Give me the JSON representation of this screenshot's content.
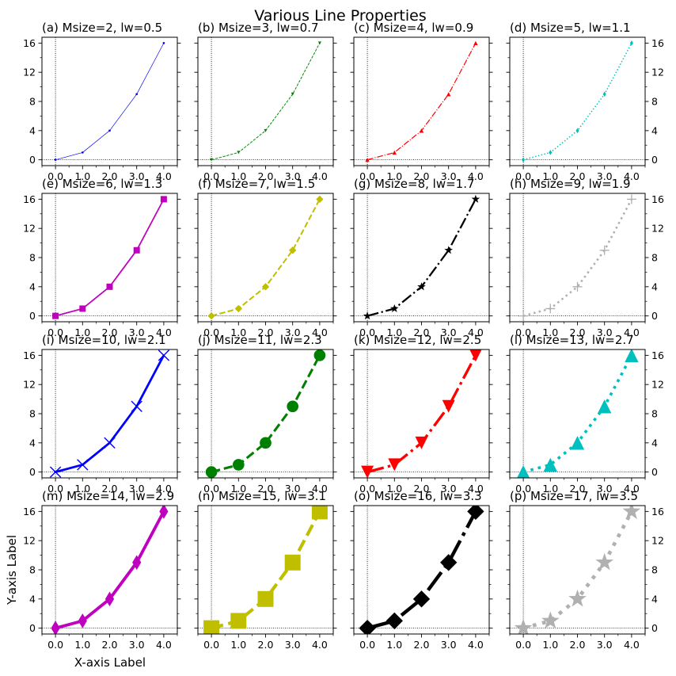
{
  "figure": {
    "title": "Various Line Properties",
    "xlabel": "X-axis Label",
    "ylabel": "Y-axis Label"
  },
  "chart_data": [
    {
      "type": "line",
      "title": "(a) Msize=2, lw=0.5",
      "x": [
        0,
        1,
        2,
        3,
        4
      ],
      "y": [
        0,
        1,
        4,
        9,
        16
      ],
      "color": "#0000ff",
      "linestyle": "solid",
      "marker": "circle",
      "marker_size": 2,
      "line_width": 0.5,
      "xticks": [
        "0.0",
        "1.0",
        "2.0",
        "3.0",
        "4.0"
      ],
      "yticks": [
        "0",
        "4",
        "8",
        "12",
        "16"
      ],
      "xlim": [
        -0.5,
        4.5
      ],
      "ylim": [
        -0.8,
        16.8
      ],
      "yaxis": "left"
    },
    {
      "type": "line",
      "title": "(b) Msize=3, lw=0.7",
      "x": [
        0,
        1,
        2,
        3,
        4
      ],
      "y": [
        0,
        1,
        4,
        9,
        16
      ],
      "color": "#008000",
      "linestyle": "dashed",
      "marker": "triangle-down",
      "marker_size": 3,
      "line_width": 0.7,
      "xticks": [
        "0.0",
        "1.0",
        "2.0",
        "3.0",
        "4.0"
      ],
      "yticks": [
        "0",
        "4",
        "8",
        "12",
        "16"
      ],
      "xlim": [
        -0.5,
        4.5
      ],
      "ylim": [
        -0.8,
        16.8
      ],
      "yaxis": "none"
    },
    {
      "type": "line",
      "title": "(c) Msize=4, lw=0.9",
      "x": [
        0,
        1,
        2,
        3,
        4
      ],
      "y": [
        0,
        1,
        4,
        9,
        16
      ],
      "color": "#ff0000",
      "linestyle": "dashdot",
      "marker": "triangle-up",
      "marker_size": 4,
      "line_width": 0.9,
      "xticks": [
        "0.0",
        "1.0",
        "2.0",
        "3.0",
        "4.0"
      ],
      "yticks": [
        "0",
        "4",
        "8",
        "12",
        "16"
      ],
      "xlim": [
        -0.5,
        4.5
      ],
      "ylim": [
        -0.8,
        16.8
      ],
      "yaxis": "none"
    },
    {
      "type": "line",
      "title": "(d) Msize=5, lw=1.1",
      "x": [
        0,
        1,
        2,
        3,
        4
      ],
      "y": [
        0,
        1,
        4,
        9,
        16
      ],
      "color": "#00bfbf",
      "linestyle": "dotted",
      "marker": "thin-diamond",
      "marker_size": 5,
      "line_width": 1.1,
      "xticks": [
        "0.0",
        "1.0",
        "2.0",
        "3.0",
        "4.0"
      ],
      "yticks": [
        "0",
        "4",
        "8",
        "12",
        "16"
      ],
      "xlim": [
        -0.5,
        4.5
      ],
      "ylim": [
        -0.8,
        16.8
      ],
      "yaxis": "right"
    },
    {
      "type": "line",
      "title": "(e) Msize=6, lw=1.3",
      "x": [
        0,
        1,
        2,
        3,
        4
      ],
      "y": [
        0,
        1,
        4,
        9,
        16
      ],
      "color": "#bf00bf",
      "linestyle": "solid",
      "marker": "square",
      "marker_size": 6,
      "line_width": 1.3,
      "xticks": [
        "0.0",
        "1.0",
        "2.0",
        "3.0",
        "4.0"
      ],
      "yticks": [
        "0",
        "4",
        "8",
        "12",
        "16"
      ],
      "xlim": [
        -0.5,
        4.5
      ],
      "ylim": [
        -0.8,
        16.8
      ],
      "yaxis": "left"
    },
    {
      "type": "line",
      "title": "(f) Msize=7, lw=1.5",
      "x": [
        0,
        1,
        2,
        3,
        4
      ],
      "y": [
        0,
        1,
        4,
        9,
        16
      ],
      "color": "#bfbf00",
      "linestyle": "dashed",
      "marker": "diamond",
      "marker_size": 7,
      "line_width": 1.5,
      "xticks": [
        "0.0",
        "1.0",
        "2.0",
        "3.0",
        "4.0"
      ],
      "yticks": [
        "0",
        "4",
        "8",
        "12",
        "16"
      ],
      "xlim": [
        -0.5,
        4.5
      ],
      "ylim": [
        -0.8,
        16.8
      ],
      "yaxis": "none"
    },
    {
      "type": "line",
      "title": "(g) Msize=8, lw=1.7",
      "x": [
        0,
        1,
        2,
        3,
        4
      ],
      "y": [
        0,
        1,
        4,
        9,
        16
      ],
      "color": "#000000",
      "linestyle": "dashdot",
      "marker": "star",
      "marker_size": 8,
      "line_width": 1.7,
      "xticks": [
        "0.0",
        "1.0",
        "2.0",
        "3.0",
        "4.0"
      ],
      "yticks": [
        "0",
        "4",
        "8",
        "12",
        "16"
      ],
      "xlim": [
        -0.5,
        4.5
      ],
      "ylim": [
        -0.8,
        16.8
      ],
      "yaxis": "none"
    },
    {
      "type": "line",
      "title": "(h) Msize=9, lw=1.9",
      "x": [
        0,
        1,
        2,
        3,
        4
      ],
      "y": [
        0,
        1,
        4,
        9,
        16
      ],
      "color": "#b0b0b0",
      "linestyle": "dotted",
      "marker": "plus",
      "marker_size": 9,
      "line_width": 1.9,
      "xticks": [
        "0.0",
        "1.0",
        "2.0",
        "3.0",
        "4.0"
      ],
      "yticks": [
        "0",
        "4",
        "8",
        "12",
        "16"
      ],
      "xlim": [
        -0.5,
        4.5
      ],
      "ylim": [
        -0.8,
        16.8
      ],
      "yaxis": "right"
    },
    {
      "type": "line",
      "title": "(i) Msize=10, lw=2.1",
      "x": [
        0,
        1,
        2,
        3,
        4
      ],
      "y": [
        0,
        1,
        4,
        9,
        16
      ],
      "color": "#0000ff",
      "linestyle": "solid",
      "marker": "x",
      "marker_size": 10,
      "line_width": 2.1,
      "xticks": [
        "0.0",
        "1.0",
        "2.0",
        "3.0",
        "4.0"
      ],
      "yticks": [
        "0",
        "4",
        "8",
        "12",
        "16"
      ],
      "xlim": [
        -0.5,
        4.5
      ],
      "ylim": [
        -0.8,
        16.8
      ],
      "yaxis": "left"
    },
    {
      "type": "line",
      "title": "(j) Msize=11, lw=2.3",
      "x": [
        0,
        1,
        2,
        3,
        4
      ],
      "y": [
        0,
        1,
        4,
        9,
        16
      ],
      "color": "#008000",
      "linestyle": "dashed",
      "marker": "circle",
      "marker_size": 11,
      "line_width": 2.3,
      "xticks": [
        "0.0",
        "1.0",
        "2.0",
        "3.0",
        "4.0"
      ],
      "yticks": [
        "0",
        "4",
        "8",
        "12",
        "16"
      ],
      "xlim": [
        -0.5,
        4.5
      ],
      "ylim": [
        -0.8,
        16.8
      ],
      "yaxis": "none"
    },
    {
      "type": "line",
      "title": "(k) Msize=12, lw=2.5",
      "x": [
        0,
        1,
        2,
        3,
        4
      ],
      "y": [
        0,
        1,
        4,
        9,
        16
      ],
      "color": "#ff0000",
      "linestyle": "dashdot",
      "marker": "triangle-down",
      "marker_size": 12,
      "line_width": 2.5,
      "xticks": [
        "0.0",
        "1.0",
        "2.0",
        "3.0",
        "4.0"
      ],
      "yticks": [
        "0",
        "4",
        "8",
        "12",
        "16"
      ],
      "xlim": [
        -0.5,
        4.5
      ],
      "ylim": [
        -0.8,
        16.8
      ],
      "yaxis": "none"
    },
    {
      "type": "line",
      "title": "(l) Msize=13, lw=2.7",
      "x": [
        0,
        1,
        2,
        3,
        4
      ],
      "y": [
        0,
        1,
        4,
        9,
        16
      ],
      "color": "#00bfbf",
      "linestyle": "dotted",
      "marker": "triangle-up",
      "marker_size": 13,
      "line_width": 2.7,
      "xticks": [
        "0.0",
        "1.0",
        "2.0",
        "3.0",
        "4.0"
      ],
      "yticks": [
        "0",
        "4",
        "8",
        "12",
        "16"
      ],
      "xlim": [
        -0.5,
        4.5
      ],
      "ylim": [
        -0.8,
        16.8
      ],
      "yaxis": "right"
    },
    {
      "type": "line",
      "title": "(m) Msize=14, lw=2.9",
      "x": [
        0,
        1,
        2,
        3,
        4
      ],
      "y": [
        0,
        1,
        4,
        9,
        16
      ],
      "color": "#bf00bf",
      "linestyle": "solid",
      "marker": "thin-diamond",
      "marker_size": 14,
      "line_width": 2.9,
      "xticks": [
        "0.0",
        "1.0",
        "2.0",
        "3.0",
        "4.0"
      ],
      "yticks": [
        "0",
        "4",
        "8",
        "12",
        "16"
      ],
      "xlim": [
        -0.5,
        4.5
      ],
      "ylim": [
        -0.8,
        16.8
      ],
      "yaxis": "left"
    },
    {
      "type": "line",
      "title": "(n) Msize=15, lw=3.1",
      "x": [
        0,
        1,
        2,
        3,
        4
      ],
      "y": [
        0,
        1,
        4,
        9,
        16
      ],
      "color": "#bfbf00",
      "linestyle": "dashed",
      "marker": "square",
      "marker_size": 15,
      "line_width": 3.1,
      "xticks": [
        "0.0",
        "1.0",
        "2.0",
        "3.0",
        "4.0"
      ],
      "yticks": [
        "0",
        "4",
        "8",
        "12",
        "16"
      ],
      "xlim": [
        -0.5,
        4.5
      ],
      "ylim": [
        -0.8,
        16.8
      ],
      "yaxis": "none"
    },
    {
      "type": "line",
      "title": "(o) Msize=16, lw=3.3",
      "x": [
        0,
        1,
        2,
        3,
        4
      ],
      "y": [
        0,
        1,
        4,
        9,
        16
      ],
      "color": "#000000",
      "linestyle": "dashdot",
      "marker": "diamond",
      "marker_size": 16,
      "line_width": 3.3,
      "xticks": [
        "0.0",
        "1.0",
        "2.0",
        "3.0",
        "4.0"
      ],
      "yticks": [
        "0",
        "4",
        "8",
        "12",
        "16"
      ],
      "xlim": [
        -0.5,
        4.5
      ],
      "ylim": [
        -0.8,
        16.8
      ],
      "yaxis": "none"
    },
    {
      "type": "line",
      "title": "(p) Msize=17, lw=3.5",
      "x": [
        0,
        1,
        2,
        3,
        4
      ],
      "y": [
        0,
        1,
        4,
        9,
        16
      ],
      "color": "#b0b0b0",
      "linestyle": "dotted",
      "marker": "star",
      "marker_size": 17,
      "line_width": 3.5,
      "xticks": [
        "0.0",
        "1.0",
        "2.0",
        "3.0",
        "4.0"
      ],
      "yticks": [
        "0",
        "4",
        "8",
        "12",
        "16"
      ],
      "xlim": [
        -0.5,
        4.5
      ],
      "ylim": [
        -0.8,
        16.8
      ],
      "yaxis": "right"
    }
  ]
}
